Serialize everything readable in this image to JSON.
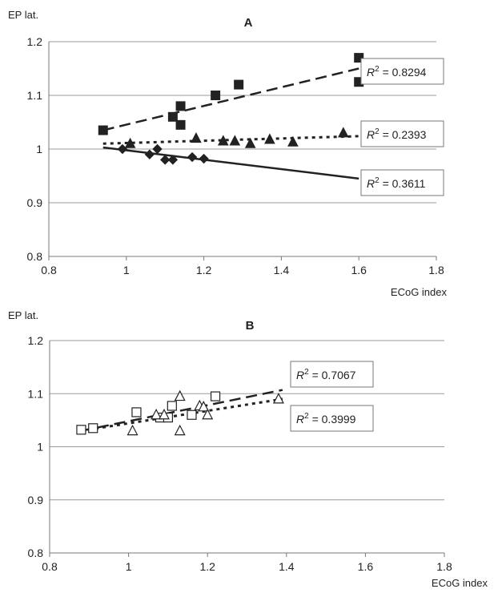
{
  "chart_data": [
    {
      "type": "scatter",
      "panel_label": "A",
      "ylabel": "EP lat.",
      "xlabel": "ECoG index",
      "xlim": [
        0.8,
        1.8
      ],
      "ylim": [
        0.8,
        1.2
      ],
      "x_ticks": [
        "0.8",
        "1",
        "1.2",
        "1.4",
        "1.6",
        "1.8"
      ],
      "y_ticks": [
        "0.8",
        "0.9",
        "1",
        "1.1",
        "1.2"
      ],
      "grid": "horizontal",
      "series": [
        {
          "marker": "square-filled",
          "color": "#222222",
          "x": [
            0.94,
            1.12,
            1.14,
            1.14,
            1.23,
            1.29,
            1.6,
            1.6
          ],
          "y": [
            1.035,
            1.06,
            1.08,
            1.045,
            1.1,
            1.12,
            1.17,
            1.125
          ],
          "trendline": {
            "style": "dashed-long",
            "x": [
              0.94,
              1.6
            ],
            "y": [
              1.035,
              1.15
            ]
          },
          "r2_label": "R² = 0.8294",
          "r2_value": 0.8294
        },
        {
          "marker": "triangle-filled",
          "color": "#222222",
          "x": [
            1.01,
            1.18,
            1.25,
            1.28,
            1.32,
            1.37,
            1.43,
            1.56
          ],
          "y": [
            1.01,
            1.02,
            1.015,
            1.015,
            1.01,
            1.018,
            1.013,
            1.03
          ],
          "trendline": {
            "style": "dotted",
            "x": [
              0.94,
              1.6
            ],
            "y": [
              1.01,
              1.024
            ]
          },
          "r2_label": "R² = 0.2393",
          "r2_value": 0.2393
        },
        {
          "marker": "diamond-filled",
          "color": "#222222",
          "x": [
            0.99,
            1.06,
            1.08,
            1.1,
            1.12,
            1.17,
            1.2
          ],
          "y": [
            1.0,
            0.99,
            1.0,
            0.98,
            0.98,
            0.985,
            0.982
          ],
          "trendline": {
            "style": "solid",
            "x": [
              0.94,
              1.6
            ],
            "y": [
              1.003,
              0.945
            ]
          },
          "r2_label": "R² = 0.3611",
          "r2_value": 0.3611
        }
      ]
    },
    {
      "type": "scatter",
      "panel_label": "B",
      "ylabel": "EP lat.",
      "xlabel": "ECoG index",
      "xlim": [
        0.8,
        1.8
      ],
      "ylim": [
        0.8,
        1.2
      ],
      "x_ticks": [
        "0.8",
        "1",
        "1.2",
        "1.4",
        "1.6",
        "1.8"
      ],
      "y_ticks": [
        "0.8",
        "0.9",
        "1",
        "1.1",
        "1.2"
      ],
      "grid": "horizontal",
      "series": [
        {
          "marker": "square-open",
          "color": "#222222",
          "x": [
            0.88,
            0.91,
            1.02,
            1.08,
            1.1,
            1.11,
            1.16,
            1.22
          ],
          "y": [
            1.032,
            1.035,
            1.065,
            1.055,
            1.055,
            1.077,
            1.06,
            1.095
          ],
          "trendline": {
            "style": "dashed-long",
            "x": [
              0.88,
              1.39
            ],
            "y": [
              1.03,
              1.107
            ]
          },
          "r2_label": "R² = 0.7067",
          "r2_value": 0.7067
        },
        {
          "marker": "triangle-open",
          "color": "#222222",
          "x": [
            1.01,
            1.07,
            1.09,
            1.13,
            1.13,
            1.18,
            1.19,
            1.2,
            1.38
          ],
          "y": [
            1.03,
            1.06,
            1.06,
            1.095,
            1.03,
            1.077,
            1.075,
            1.06,
            1.09
          ],
          "trendline": {
            "style": "dotted",
            "x": [
              0.88,
              1.39
            ],
            "y": [
              1.03,
              1.09
            ]
          },
          "r2_label": "R² = 0.3999",
          "r2_value": 0.3999
        }
      ]
    }
  ]
}
